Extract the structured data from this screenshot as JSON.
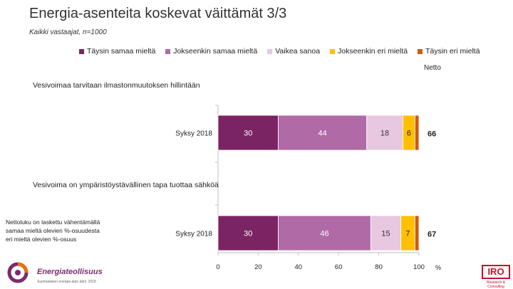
{
  "header": {
    "title": "Energia-asenteita koskevat väittämät 3/3",
    "subtitle": "Kaikki vastaajat, n=1000"
  },
  "netto_label": "Netto",
  "percent_label": "%",
  "footnote": "Nettoluku on laskettu vähentämällä samaa mieltä olevien %-osuudesta eri mieltä olevien %-osuus",
  "footer": {
    "logo_text": "Energiateollisuus",
    "logo_sub": "Suomalaisen energia-alan ääni. 2018",
    "iro_text": "IRO",
    "iro_sub": "Research & Consulting"
  },
  "colors": {
    "taysin_samaa": "#7b2463",
    "jokseenkin_samaa": "#b06aa6",
    "vaikea": "#e8c7e1",
    "jokseenkin_eri": "#ffc000",
    "taysin_eri": "#d05a10"
  },
  "chart_data": {
    "type": "bar",
    "orientation": "horizontal-stacked",
    "xlim": [
      0,
      100
    ],
    "xticks": [
      0,
      20,
      40,
      60,
      80,
      100
    ],
    "xlabel": "%",
    "legend": [
      "Täysin samaa mieltä",
      "Jokseenkin samaa mieltä",
      "Vaikea sanoa",
      "Jokseenkin eri mieltä",
      "Täysin eri mieltä"
    ],
    "groups": [
      {
        "statement": "Vesivoimaa tarvitaan ilmastonmuutoksen hillintään",
        "category": "Syksy 2018",
        "values": [
          30,
          44,
          18,
          6,
          2
        ],
        "labels": [
          "30",
          "44",
          "18",
          "6",
          ""
        ],
        "netto": "66"
      },
      {
        "statement": "Vesivoima on ympäristöystävällinen tapa tuottaa sähköä",
        "category": "Syksy 2018",
        "values": [
          30,
          46,
          15,
          7,
          2
        ],
        "labels": [
          "30",
          "46",
          "15",
          "7",
          ""
        ],
        "netto": "67"
      }
    ]
  }
}
